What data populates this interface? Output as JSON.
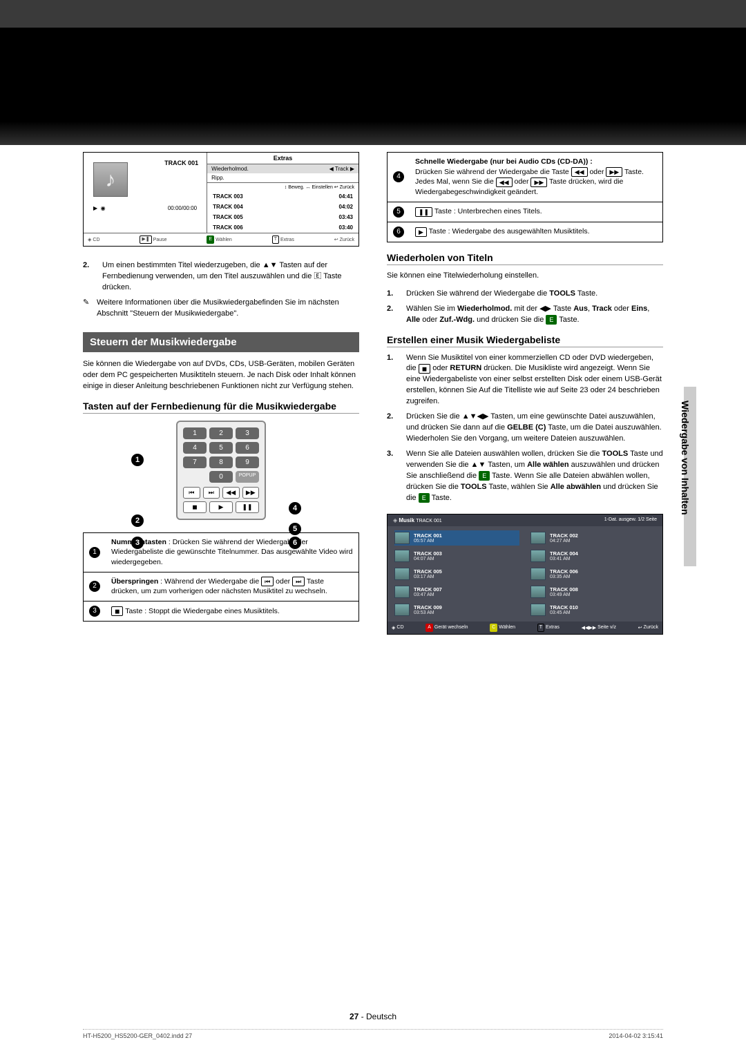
{
  "dark_header": true,
  "player": {
    "current_track": "TRACK 001",
    "extras_label": "Extras",
    "menu": [
      {
        "label": "Wiederholmod.",
        "val": "Track",
        "sel": true
      },
      {
        "label": "Ripp.",
        "val": ""
      }
    ],
    "hints": "↕ Beweg.   ↔ Einstellen   ↩ Zurück",
    "tracks": [
      {
        "name": "TRACK 003",
        "dur": "04:41"
      },
      {
        "name": "TRACK 004",
        "dur": "04:02"
      },
      {
        "name": "TRACK 005",
        "dur": "03:43"
      },
      {
        "name": "TRACK 006",
        "dur": "03:40"
      }
    ],
    "status_time": "00:00/00:00",
    "foot": {
      "src": "CD",
      "pause": "Pause",
      "wahlen": "Wählen",
      "extras": "Extras",
      "zuruck": "Zurück"
    }
  },
  "body_left": {
    "step2": "Um einen bestimmten Titel wiederzugeben, die ▲▼ Tasten auf der Fernbedienung verwenden, um den Titel auszuwählen und die 🄴 Taste drücken.",
    "note": "Weitere Informationen über die Musikwiedergabefinden Sie im nächsten Abschnitt \"Steuern der Musikwiedergabe\".",
    "section": "Steuern der Musikwiedergabe",
    "section_intro": "Sie können die Wiedergabe von auf DVDs, CDs, USB-Geräten, mobilen Geräten oder dem PC gespeicherten Musiktiteln steuern. Je nach Disk oder Inhalt können einige in dieser Anleitung beschriebenen Funktionen nicht zur Verfügung stehen.",
    "sub1": "Tasten auf der Fernbedienung für die Musikwiedergabe"
  },
  "remote_callouts": [
    "1",
    "2",
    "3",
    "4",
    "5",
    "6"
  ],
  "desc_left": [
    {
      "n": "1",
      "html": "<b>Nummerntasten</b> : Drücken Sie während der Wiedergabe der Wiedergabeliste  die gewünschte Titelnummer. Das ausgewählte Video wird wiedergegeben."
    },
    {
      "n": "2",
      "html": "<b>Überspringen</b> : Während der Wiedergabe die <span class='icon-box'>⏮</span> oder <span class='icon-box'>⏭</span> Taste drücken, um zum vorherigen oder nächsten Musiktitel zu wechseln."
    },
    {
      "n": "3",
      "html": "<span class='icon-box'>◼</span> Taste : Stoppt die Wiedergabe eines Musiktitels."
    }
  ],
  "desc_right": [
    {
      "n": "4",
      "html": "<b>Schnelle Wiedergabe (nur bei Audio CDs (CD-DA)) :</b><br>Drücken Sie während der Wiedergabe die Taste <span class='icon-box'>◀◀</span> oder <span class='icon-box'>▶▶</span> Taste. Jedes Mal, wenn Sie die <span class='icon-box'>◀◀</span> oder <span class='icon-box'>▶▶</span> Taste drücken, wird die Wiedergabegeschwindigkeit geändert."
    },
    {
      "n": "5",
      "html": "<span class='icon-box'>❚❚</span> Taste : Unterbrechen eines Titels."
    },
    {
      "n": "6",
      "html": "<span class='icon-box'>▶</span> Taste : Wiedergabe des ausgewählten Musiktitels."
    }
  ],
  "right": {
    "sub2": "Wiederholen von Titeln",
    "r_intro": "Sie können eine Titelwiederholung einstellen.",
    "r_steps": [
      "Drücken Sie während der Wiedergabe die <b>TOOLS</b> Taste.",
      "Wählen Sie im <b>Wiederholmod.</b> mit der ◀▶ Taste <b>Aus</b>, <b>Track</b> oder <b>Eins</b>, <b>Alle</b> oder <b>Zuf.-Wdg.</b> und drücken Sie die <span class='icon-box g'>E</span> Taste."
    ],
    "sub3": "Erstellen einer Musik Wiedergabeliste",
    "p_steps": [
      "Wenn Sie Musiktitel von einer kommerziellen CD oder DVD wiedergeben, die <span class='icon-box'>◼</span> oder <b>RETURN</b> drücken. Die Musikliste wird angezeigt. Wenn Sie eine Wiedergabeliste von einer selbst erstellten Disk oder einem USB-Gerät erstellen, können Sie Auf die Titelliste wie auf Seite 23 oder 24 beschrieben zugreifen.",
      "Drücken Sie die ▲▼◀▶ Tasten, um eine gewünschte Datei auszuwählen, und drücken Sie dann auf die <b>GELBE (C)</b> Taste, um die Datei auszuwählen. Wiederholen Sie den Vorgang, um weitere Dateien auszuwählen.",
      "Wenn Sie alle Dateien auswählen wollen, drücken Sie die <b>TOOLS</b> Taste und verwenden Sie die ▲▼ Tasten, um <b>Alle wählen</b> auszuwählen und drücken Sie anschließend die <span class='icon-box g'>E</span> Taste. Wenn Sie alle Dateien abwählen wollen, drücken Sie die <b>TOOLS</b> Taste, wählen Sie <b>Alle abwählen</b> und drücken Sie die <span class='icon-box g'>E</span> Taste."
    ]
  },
  "browser": {
    "title_left": "Musik",
    "title_track": "TRACK 001",
    "title_right": "1-Dat. ausgew.    1/2 Seite",
    "items": [
      {
        "t": "TRACK 001",
        "s": "05:57 AM",
        "sel": true
      },
      {
        "t": "TRACK 002",
        "s": "04:27 AM"
      },
      {
        "t": "TRACK 003",
        "s": "04:07 AM"
      },
      {
        "t": "TRACK 004",
        "s": "03:41 AM"
      },
      {
        "t": "TRACK 005",
        "s": "03:17 AM"
      },
      {
        "t": "TRACK 006",
        "s": "03:35 AM"
      },
      {
        "t": "TRACK 007",
        "s": "03:47 AM"
      },
      {
        "t": "TRACK 008",
        "s": "03:49 AM"
      },
      {
        "t": "TRACK 009",
        "s": "03:53 AM"
      },
      {
        "t": "TRACK 010",
        "s": "03:45 AM"
      }
    ],
    "foot": {
      "src": "CD",
      "a": "Gerät wechseln",
      "c": "Wählen",
      "t": "Extras",
      "p": "Seite v/z",
      "z": "Zurück"
    }
  },
  "side_tab": "Wiedergabe von Inhalten",
  "page_no": "27",
  "page_lang": "Deutsch",
  "meta_left": "HT-H5200_HS5200-GER_0402.indd   27",
  "meta_right": "2014-04-02      3:15:41"
}
